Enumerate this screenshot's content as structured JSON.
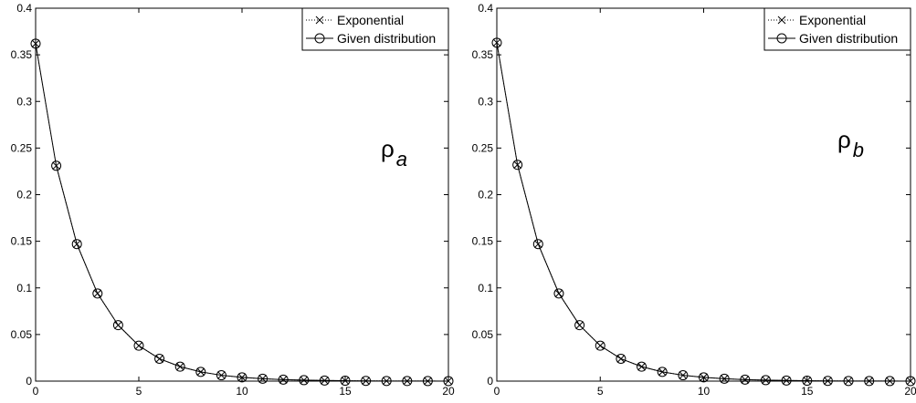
{
  "chart_data": [
    {
      "type": "line",
      "xlim": [
        0,
        20
      ],
      "ylim": [
        0,
        0.4
      ],
      "xticks": [
        0,
        5,
        10,
        15,
        20
      ],
      "yticks": [
        0,
        0.05,
        0.1,
        0.15,
        0.2,
        0.25,
        0.3,
        0.35,
        0.4
      ],
      "xtick_labels": [
        "0",
        "5",
        "10",
        "15",
        "20"
      ],
      "ytick_labels": [
        "0",
        "0.05",
        "0.1",
        "0.15",
        "0.2",
        "0.25",
        "0.3",
        "0.35",
        "0.4"
      ],
      "grid": false,
      "legend_position": "top-right",
      "annotation": {
        "base": "ρ",
        "sub": "a"
      },
      "x": [
        0,
        1,
        2,
        3,
        4,
        5,
        6,
        7,
        8,
        9,
        10,
        11,
        12,
        13,
        14,
        15,
        16,
        17,
        18,
        19,
        20
      ],
      "series": [
        {
          "name": "Exponential",
          "marker": "x",
          "line": "dotted",
          "values": [
            0.362,
            0.231,
            0.147,
            0.094,
            0.06,
            0.038,
            0.024,
            0.0155,
            0.0099,
            0.0063,
            0.004,
            0.0026,
            0.0016,
            0.00105,
            0.00067,
            0.00043,
            0.00027,
            0.00017,
            0.00011,
            7e-05,
            5e-05
          ]
        },
        {
          "name": "Given distribution",
          "marker": "o",
          "line": "solid",
          "values": [
            0.362,
            0.231,
            0.147,
            0.094,
            0.06,
            0.038,
            0.024,
            0.0155,
            0.0099,
            0.0063,
            0.004,
            0.0026,
            0.0016,
            0.00105,
            0.00067,
            0.00043,
            0.00027,
            0.00017,
            0.00011,
            7e-05,
            5e-05
          ]
        }
      ]
    },
    {
      "type": "line",
      "xlim": [
        0,
        20
      ],
      "ylim": [
        0,
        0.4
      ],
      "xticks": [
        0,
        5,
        10,
        15,
        20
      ],
      "yticks": [
        0,
        0.05,
        0.1,
        0.15,
        0.2,
        0.25,
        0.3,
        0.35,
        0.4
      ],
      "xtick_labels": [
        "0",
        "5",
        "10",
        "15",
        "20"
      ],
      "ytick_labels": [
        "0",
        "0.05",
        "0.1",
        "0.15",
        "0.2",
        "0.25",
        "0.3",
        "0.35",
        "0.4"
      ],
      "grid": false,
      "legend_position": "top-right",
      "annotation": {
        "base": "ρ",
        "sub": "b"
      },
      "x": [
        0,
        1,
        2,
        3,
        4,
        5,
        6,
        7,
        8,
        9,
        10,
        11,
        12,
        13,
        14,
        15,
        16,
        17,
        18,
        19,
        20
      ],
      "series": [
        {
          "name": "Exponential",
          "marker": "x",
          "line": "dotted",
          "values": [
            0.363,
            0.232,
            0.147,
            0.094,
            0.06,
            0.038,
            0.024,
            0.0155,
            0.0099,
            0.0063,
            0.004,
            0.0026,
            0.0016,
            0.00105,
            0.00067,
            0.00043,
            0.00027,
            0.00017,
            0.00011,
            7e-05,
            5e-05
          ]
        },
        {
          "name": "Given distribution",
          "marker": "o",
          "line": "solid",
          "values": [
            0.363,
            0.232,
            0.147,
            0.094,
            0.06,
            0.038,
            0.024,
            0.0155,
            0.0099,
            0.0063,
            0.004,
            0.0026,
            0.0016,
            0.00105,
            0.00067,
            0.00043,
            0.00027,
            0.00017,
            0.00011,
            7e-05,
            5e-05
          ]
        }
      ]
    }
  ]
}
